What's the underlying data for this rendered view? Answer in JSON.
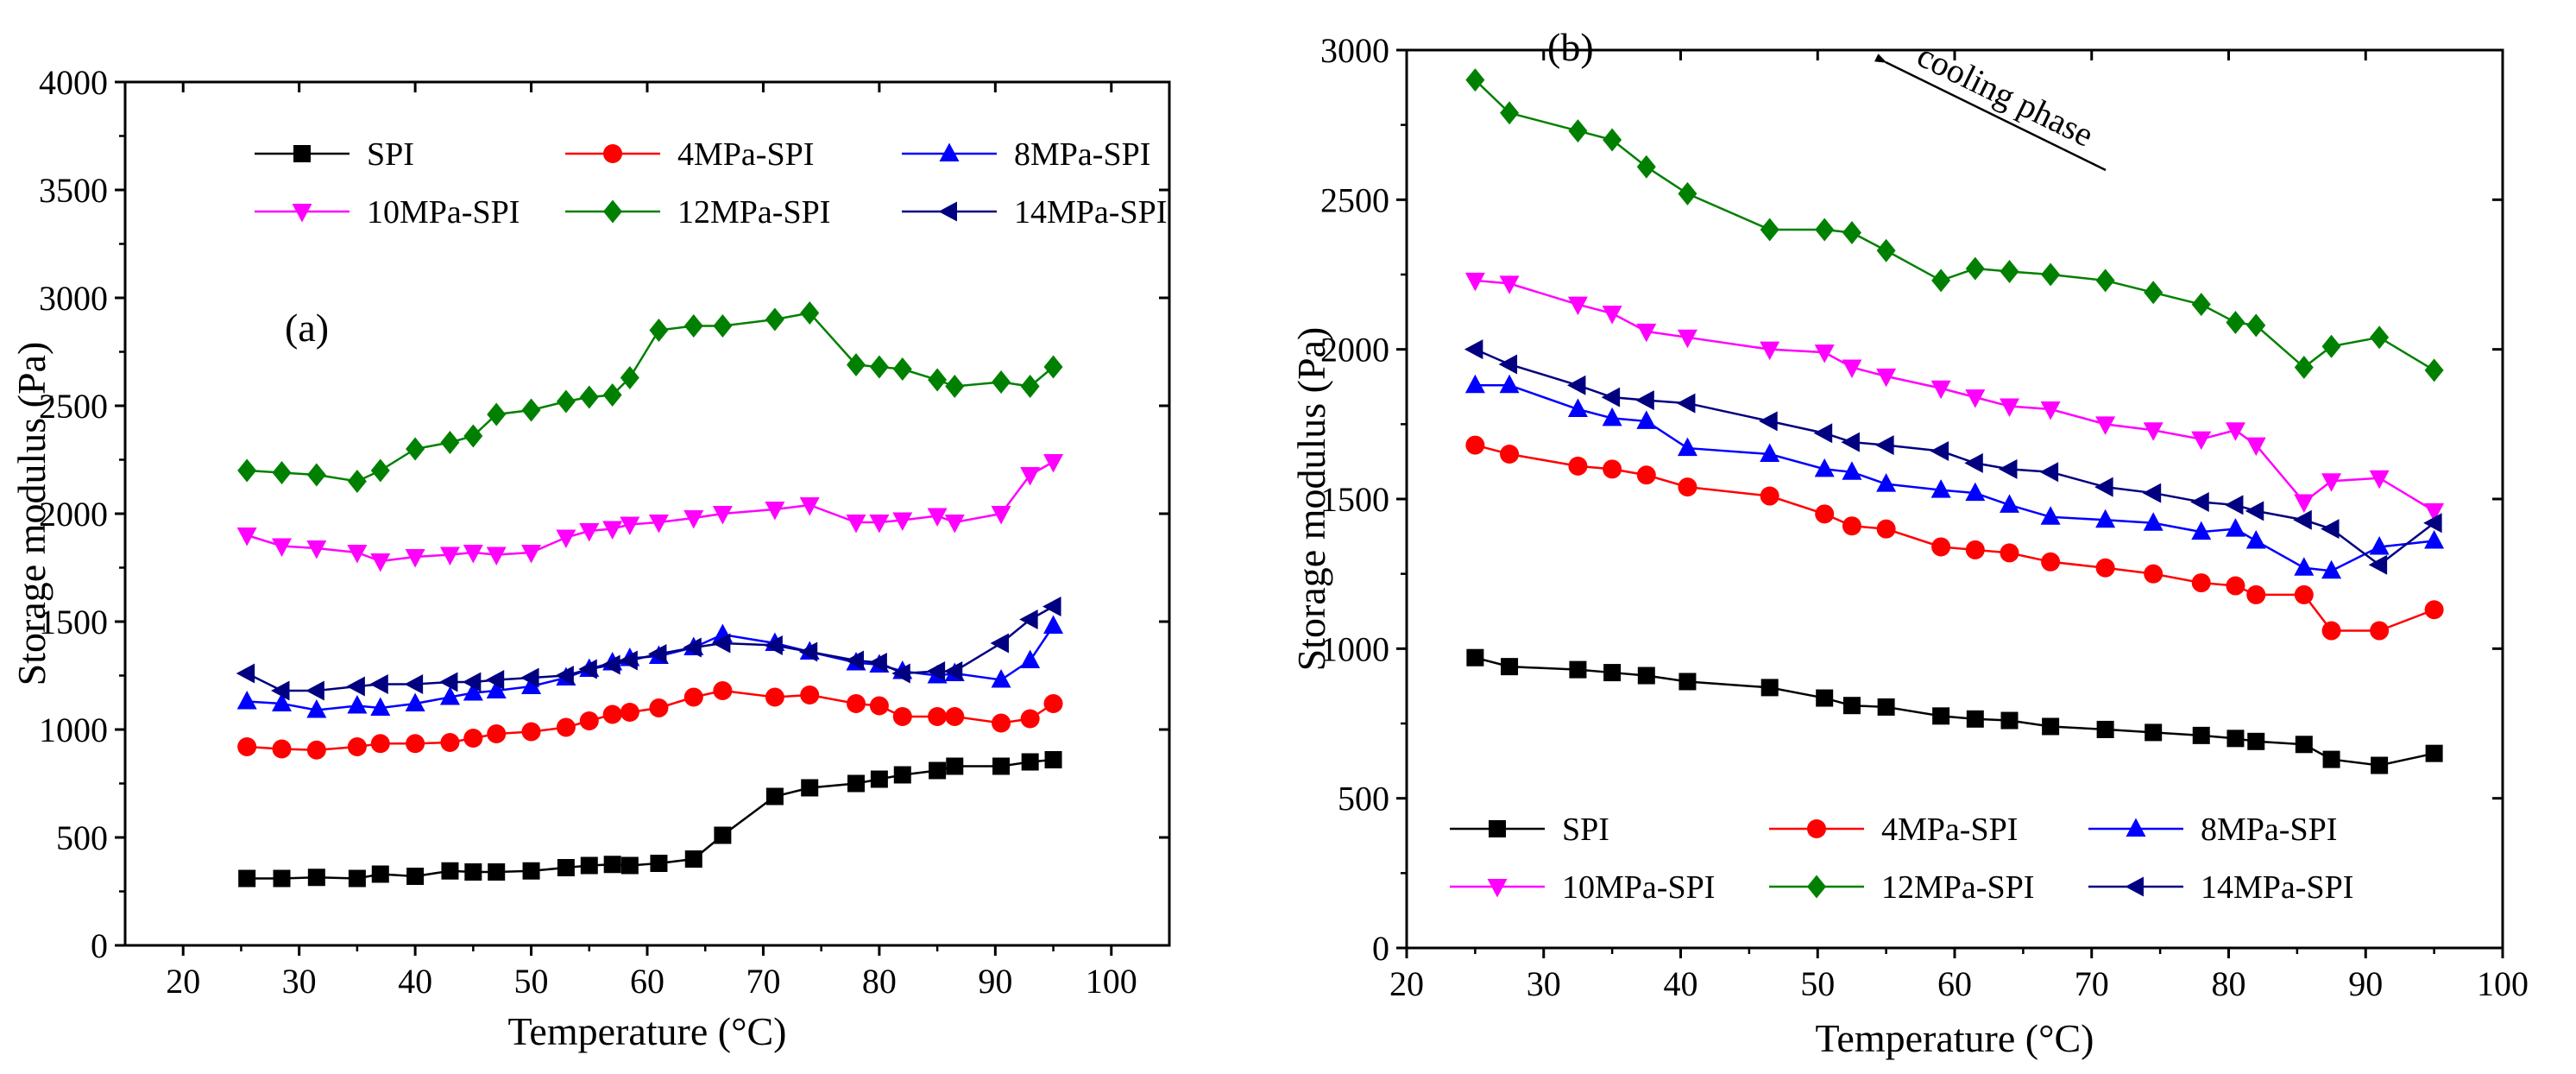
{
  "chart_data": [
    {
      "type": "line",
      "panel_label": "(a)",
      "xlabel": "Temperature (°C)",
      "ylabel": "Storage modulus (Pa)",
      "xlim": [
        15,
        105
      ],
      "ylim": [
        0,
        4000
      ],
      "xticks": [
        "20",
        "30",
        "40",
        "50",
        "60",
        "70",
        "80",
        "90",
        "100"
      ],
      "yticks": [
        "0",
        "500",
        "1000",
        "1500",
        "2000",
        "2500",
        "3000",
        "3500",
        "4000"
      ],
      "legend_position": "top",
      "series": [
        {
          "name": "SPI",
          "color": "#000000",
          "marker": "square",
          "x": [
            25.5,
            28.5,
            31.5,
            35,
            37,
            40,
            43,
            45,
            47,
            50,
            53,
            55,
            57,
            58.5,
            61,
            64,
            66.5,
            71,
            74,
            78,
            80,
            82,
            85,
            86.5,
            90.5,
            93,
            95
          ],
          "y": [
            310,
            310,
            315,
            310,
            330,
            320,
            345,
            340,
            340,
            345,
            360,
            370,
            375,
            370,
            380,
            400,
            510,
            690,
            730,
            750,
            770,
            790,
            810,
            830,
            830,
            850,
            860
          ]
        },
        {
          "name": "4MPa-SPI",
          "color": "#ff0000",
          "marker": "circle",
          "x": [
            25.5,
            28.5,
            31.5,
            35,
            37,
            40,
            43,
            45,
            47,
            50,
            53,
            55,
            57,
            58.5,
            61,
            64,
            66.5,
            71,
            74,
            78,
            80,
            82,
            85,
            86.5,
            90.5,
            93,
            95
          ],
          "y": [
            920,
            910,
            905,
            920,
            935,
            935,
            940,
            960,
            980,
            990,
            1010,
            1040,
            1070,
            1080,
            1100,
            1150,
            1180,
            1150,
            1160,
            1120,
            1110,
            1060,
            1060,
            1060,
            1030,
            1050,
            1120
          ]
        },
        {
          "name": "8MPa-SPI",
          "color": "#0000ff",
          "marker": "triangle-up",
          "x": [
            25.5,
            28.5,
            31.5,
            35,
            37,
            40,
            43,
            45,
            47,
            50,
            53,
            55,
            57,
            58.5,
            61,
            64,
            66.5,
            71,
            74,
            78,
            80,
            82,
            85,
            86.5,
            90.5,
            93,
            95
          ],
          "y": [
            1130,
            1120,
            1090,
            1110,
            1100,
            1120,
            1150,
            1170,
            1180,
            1200,
            1240,
            1280,
            1310,
            1330,
            1340,
            1380,
            1440,
            1400,
            1360,
            1310,
            1300,
            1270,
            1250,
            1260,
            1230,
            1320,
            1480
          ]
        },
        {
          "name": "10MPa-SPI",
          "color": "#ff00ff",
          "marker": "triangle-down",
          "x": [
            25.5,
            28.5,
            31.5,
            35,
            37,
            40,
            43,
            45,
            47,
            50,
            53,
            55,
            57,
            58.5,
            61,
            64,
            66.5,
            71,
            74,
            78,
            80,
            82,
            85,
            86.5,
            90.5,
            93,
            95
          ],
          "y": [
            1900,
            1850,
            1840,
            1820,
            1780,
            1800,
            1810,
            1820,
            1810,
            1820,
            1890,
            1920,
            1930,
            1950,
            1960,
            1980,
            2000,
            2020,
            2040,
            1960,
            1960,
            1970,
            1990,
            1960,
            2000,
            2180,
            2240
          ]
        },
        {
          "name": "12MPa-SPI",
          "color": "#008000",
          "marker": "diamond",
          "x": [
            25.5,
            28.5,
            31.5,
            35,
            37,
            40,
            43,
            45,
            47,
            50,
            53,
            55,
            57,
            58.5,
            61,
            64,
            66.5,
            71,
            74,
            78,
            80,
            82,
            85,
            86.5,
            90.5,
            93,
            95
          ],
          "y": [
            2200,
            2190,
            2180,
            2150,
            2200,
            2300,
            2330,
            2360,
            2460,
            2480,
            2520,
            2540,
            2550,
            2630,
            2850,
            2870,
            2870,
            2900,
            2930,
            2690,
            2680,
            2670,
            2620,
            2590,
            2610,
            2590,
            2680
          ]
        },
        {
          "name": "14MPa-SPI",
          "color": "#000080",
          "marker": "triangle-left",
          "x": [
            25.5,
            28.5,
            31.5,
            35,
            37,
            40,
            43,
            45,
            47,
            50,
            53,
            55,
            57,
            58.5,
            61,
            64,
            66.5,
            71,
            74,
            78,
            80,
            82,
            85,
            86.5,
            90.5,
            93,
            95
          ],
          "y": [
            1260,
            1180,
            1180,
            1200,
            1210,
            1210,
            1220,
            1220,
            1230,
            1240,
            1250,
            1280,
            1300,
            1320,
            1350,
            1380,
            1400,
            1390,
            1360,
            1320,
            1310,
            1260,
            1270,
            1270,
            1400,
            1510,
            1570
          ]
        }
      ]
    },
    {
      "type": "line",
      "panel_label": "(b)",
      "annotation": "cooling phase",
      "xlabel": "Temperature (°C)",
      "ylabel": "Storage modulus (Pa)",
      "xlim": [
        20,
        100
      ],
      "ylim": [
        0,
        3000
      ],
      "xticks": [
        "20",
        "30",
        "40",
        "50",
        "60",
        "70",
        "80",
        "90",
        "100"
      ],
      "yticks": [
        "0",
        "500",
        "1000",
        "1500",
        "2000",
        "2500",
        "3000"
      ],
      "legend_position": "bottom",
      "series": [
        {
          "name": "SPI",
          "color": "#000000",
          "marker": "square",
          "x": [
            25,
            27.5,
            32.5,
            35,
            37.5,
            40.5,
            46.5,
            50.5,
            52.5,
            55,
            59,
            61.5,
            64,
            67,
            71,
            74.5,
            78,
            80.5,
            82,
            85.5,
            87.5,
            91,
            95
          ],
          "y": [
            970,
            940,
            930,
            920,
            910,
            890,
            870,
            835,
            810,
            805,
            775,
            765,
            760,
            740,
            730,
            720,
            710,
            700,
            690,
            680,
            630,
            610,
            650
          ]
        },
        {
          "name": "4MPa-SPI",
          "color": "#ff0000",
          "marker": "circle",
          "x": [
            25,
            27.5,
            32.5,
            35,
            37.5,
            40.5,
            46.5,
            50.5,
            52.5,
            55,
            59,
            61.5,
            64,
            67,
            71,
            74.5,
            78,
            80.5,
            82,
            85.5,
            87.5,
            91,
            95
          ],
          "y": [
            1680,
            1650,
            1610,
            1600,
            1580,
            1540,
            1510,
            1450,
            1410,
            1400,
            1340,
            1330,
            1320,
            1290,
            1270,
            1250,
            1220,
            1210,
            1180,
            1180,
            1060,
            1060,
            1130
          ]
        },
        {
          "name": "8MPa-SPI",
          "color": "#0000ff",
          "marker": "triangle-up",
          "x": [
            25,
            27.5,
            32.5,
            35,
            37.5,
            40.5,
            46.5,
            50.5,
            52.5,
            55,
            59,
            61.5,
            64,
            67,
            71,
            74.5,
            78,
            80.5,
            82,
            85.5,
            87.5,
            91,
            95
          ],
          "y": [
            1880,
            1880,
            1800,
            1770,
            1760,
            1670,
            1650,
            1600,
            1590,
            1550,
            1530,
            1520,
            1480,
            1440,
            1430,
            1420,
            1390,
            1400,
            1360,
            1270,
            1260,
            1340,
            1360
          ]
        },
        {
          "name": "10MPa-SPI",
          "color": "#ff00ff",
          "marker": "triangle-down",
          "x": [
            25,
            27.5,
            32.5,
            35,
            37.5,
            40.5,
            46.5,
            50.5,
            52.5,
            55,
            59,
            61.5,
            64,
            67,
            71,
            74.5,
            78,
            80.5,
            82,
            85.5,
            87.5,
            91,
            95
          ],
          "y": [
            2230,
            2220,
            2150,
            2120,
            2060,
            2040,
            2000,
            1990,
            1940,
            1910,
            1870,
            1840,
            1810,
            1800,
            1750,
            1730,
            1700,
            1730,
            1680,
            1490,
            1560,
            1570,
            1460
          ]
        },
        {
          "name": "12MPa-SPI",
          "color": "#008000",
          "marker": "diamond",
          "x": [
            25,
            27.5,
            32.5,
            35,
            37.5,
            40.5,
            46.5,
            50.5,
            52.5,
            55,
            59,
            61.5,
            64,
            67,
            71,
            74.5,
            78,
            80.5,
            82,
            85.5,
            87.5,
            91,
            95
          ],
          "y": [
            2900,
            2790,
            2730,
            2700,
            2610,
            2520,
            2400,
            2400,
            2390,
            2330,
            2230,
            2270,
            2260,
            2250,
            2230,
            2190,
            2150,
            2090,
            2080,
            1940,
            2010,
            2040,
            1930
          ]
        },
        {
          "name": "14MPa-SPI",
          "color": "#000080",
          "marker": "triangle-left",
          "x": [
            25,
            27.5,
            32.5,
            35,
            37.5,
            40.5,
            46.5,
            50.5,
            52.5,
            55,
            59,
            61.5,
            64,
            67,
            71,
            74.5,
            78,
            80.5,
            82,
            85.5,
            87.5,
            91,
            95
          ],
          "y": [
            2000,
            1950,
            1880,
            1840,
            1830,
            1820,
            1760,
            1720,
            1690,
            1680,
            1660,
            1620,
            1600,
            1590,
            1540,
            1520,
            1490,
            1480,
            1460,
            1430,
            1400,
            1280,
            1420
          ]
        }
      ]
    }
  ]
}
